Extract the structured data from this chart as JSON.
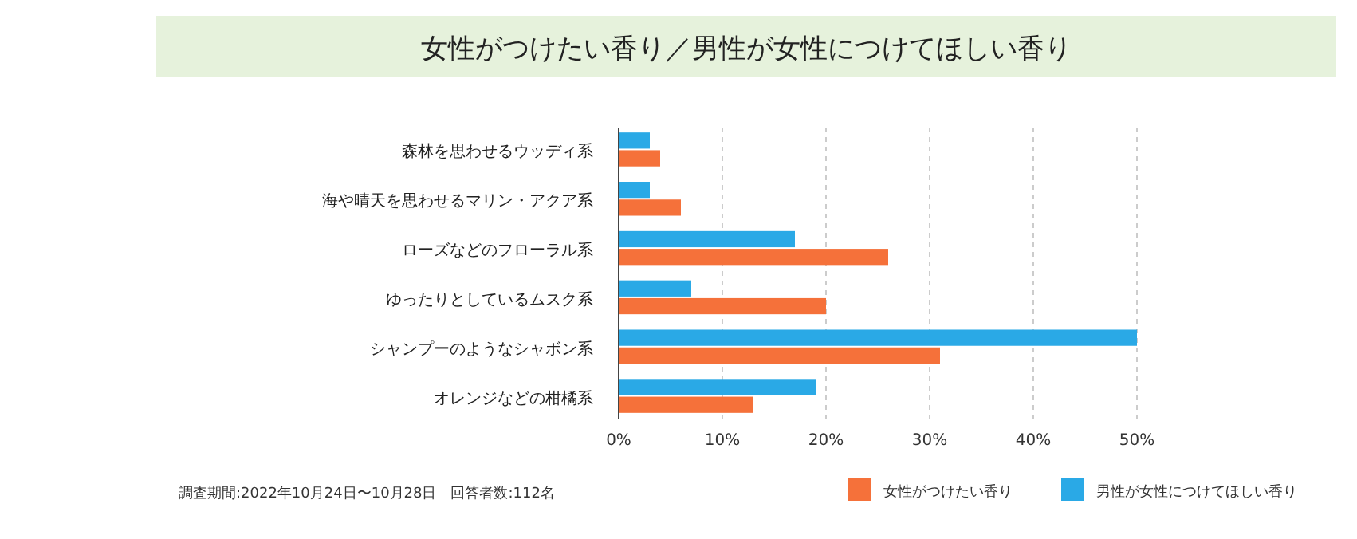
{
  "chart_data": {
    "type": "bar",
    "orientation": "horizontal",
    "title": "女性がつけたい香り／男性が女性につけてほしい香り",
    "categories": [
      "森林を思わせるウッディ系",
      "海や晴天を思わせるマリン・アクア系",
      "ローズなどのフローラル系",
      "ゆったりとしているムスク系",
      "シャンプーのようなシャボン系",
      "オレンジなどの柑橘系"
    ],
    "series": [
      {
        "name": "女性がつけたい香り",
        "color": "#f5713a",
        "values": [
          4,
          6,
          26,
          20,
          31,
          13
        ]
      },
      {
        "name": "男性が女性につけてほしい香り",
        "color": "#2aa9e6",
        "values": [
          3,
          3,
          17,
          7,
          50,
          19
        ]
      }
    ],
    "xlim": [
      0,
      50
    ],
    "xticks": [
      {
        "value": 0,
        "label": "0%"
      },
      {
        "value": 10,
        "label": "10%"
      },
      {
        "value": 20,
        "label": "20%"
      },
      {
        "value": 30,
        "label": "30%"
      },
      {
        "value": 40,
        "label": "40%"
      },
      {
        "value": 50,
        "label": "50%"
      }
    ],
    "grid": "x",
    "legend": "bottom right",
    "annotations": [
      "調査期間:2022年10月24日〜10月28日　回答者数:112名"
    ]
  }
}
